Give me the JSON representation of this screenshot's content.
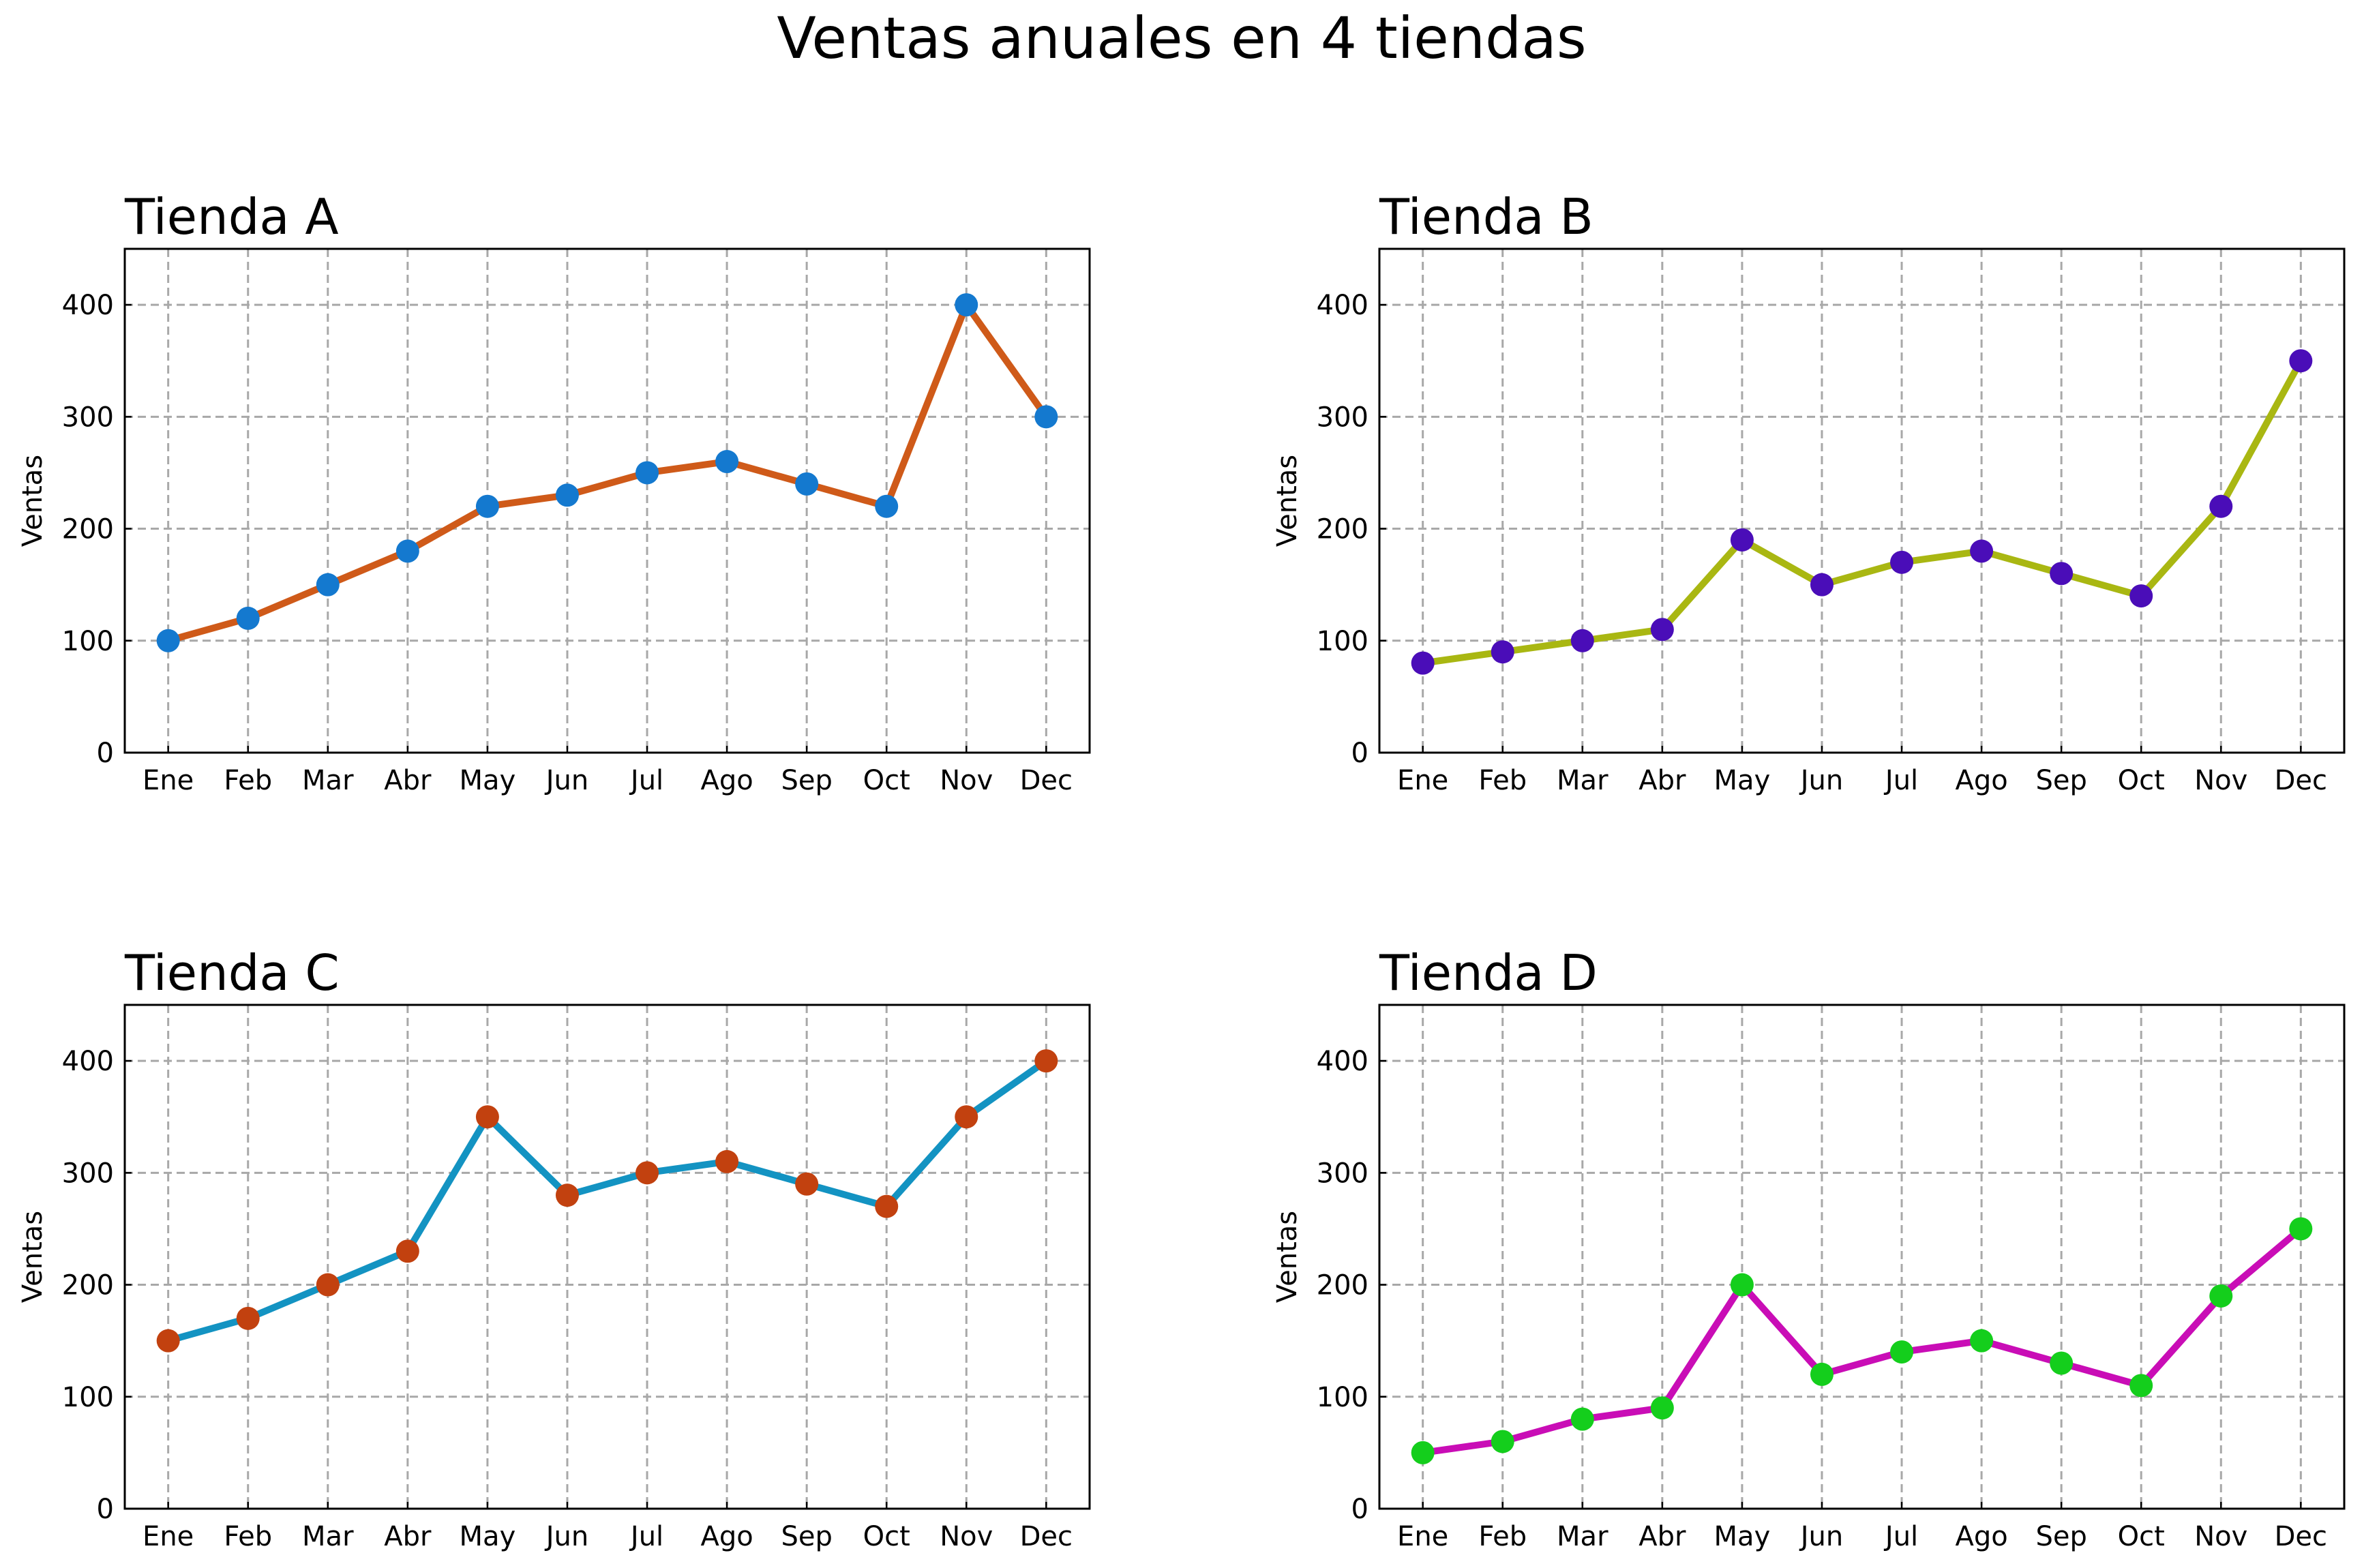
{
  "figure": {
    "title": "Ventas anuales en 4 tiendas"
  },
  "chart_data": [
    {
      "type": "line",
      "title": "Tienda A",
      "xlabel": "",
      "ylabel": "Ventas",
      "categories": [
        "Ene",
        "Feb",
        "Mar",
        "Abr",
        "May",
        "Jun",
        "Jul",
        "Ago",
        "Sep",
        "Oct",
        "Nov",
        "Dec"
      ],
      "values": [
        100,
        120,
        150,
        180,
        220,
        230,
        250,
        260,
        240,
        220,
        400,
        300
      ],
      "ylim": [
        0,
        450
      ],
      "yticks": [
        0,
        100,
        200,
        300,
        400
      ],
      "grid": true,
      "line_color": "#CF5A19",
      "marker_color": "#1479CF"
    },
    {
      "type": "line",
      "title": "Tienda B",
      "xlabel": "",
      "ylabel": "Ventas",
      "categories": [
        "Ene",
        "Feb",
        "Mar",
        "Abr",
        "May",
        "Jun",
        "Jul",
        "Ago",
        "Sep",
        "Oct",
        "Nov",
        "Dec"
      ],
      "values": [
        80,
        90,
        100,
        110,
        190,
        150,
        170,
        180,
        160,
        140,
        220,
        350
      ],
      "ylim": [
        0,
        450
      ],
      "yticks": [
        0,
        100,
        200,
        300,
        400
      ],
      "grid": true,
      "line_color": "#A9B712",
      "marker_color": "#4A0DB8"
    },
    {
      "type": "line",
      "title": "Tienda C",
      "xlabel": "",
      "ylabel": "Ventas",
      "categories": [
        "Ene",
        "Feb",
        "Mar",
        "Abr",
        "May",
        "Jun",
        "Jul",
        "Ago",
        "Sep",
        "Oct",
        "Nov",
        "Dec"
      ],
      "values": [
        150,
        170,
        200,
        230,
        350,
        280,
        300,
        310,
        290,
        270,
        350,
        400
      ],
      "ylim": [
        0,
        450
      ],
      "yticks": [
        0,
        100,
        200,
        300,
        400
      ],
      "grid": true,
      "line_color": "#1393C2",
      "marker_color": "#C2410F"
    },
    {
      "type": "line",
      "title": "Tienda D",
      "xlabel": "",
      "ylabel": "Ventas",
      "categories": [
        "Ene",
        "Feb",
        "Mar",
        "Abr",
        "May",
        "Jun",
        "Jul",
        "Ago",
        "Sep",
        "Oct",
        "Nov",
        "Dec"
      ],
      "values": [
        50,
        60,
        80,
        90,
        200,
        120,
        140,
        150,
        130,
        110,
        190,
        250
      ],
      "ylim": [
        0,
        450
      ],
      "yticks": [
        0,
        100,
        200,
        300,
        400
      ],
      "grid": true,
      "line_color": "#C90DB6",
      "marker_color": "#14CE1C"
    }
  ]
}
